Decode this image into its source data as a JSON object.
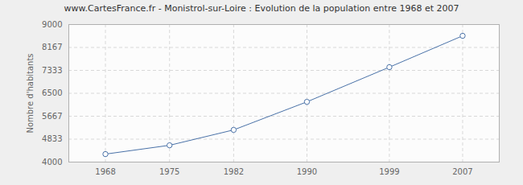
{
  "chart_data": {
    "type": "line",
    "title": "www.CartesFrance.fr - Monistrol-sur-Loire : Evolution de la population entre 1968 et 2007",
    "y_label": "Nombre d'habitants",
    "x": [
      1968,
      1975,
      1982,
      1990,
      1999,
      2007
    ],
    "values": [
      4290,
      4610,
      5170,
      6190,
      7450,
      8590
    ],
    "color": "#4a72a8",
    "marker": "circle",
    "line_style": "solid",
    "xlim": [
      1964,
      2011
    ],
    "xticks": [
      1968,
      1975,
      1982,
      1990,
      1999,
      2007
    ],
    "ylim": [
      4000,
      9000
    ],
    "yticks": [
      4000,
      4833,
      5667,
      6500,
      7333,
      8167,
      9000
    ],
    "grid": true
  }
}
